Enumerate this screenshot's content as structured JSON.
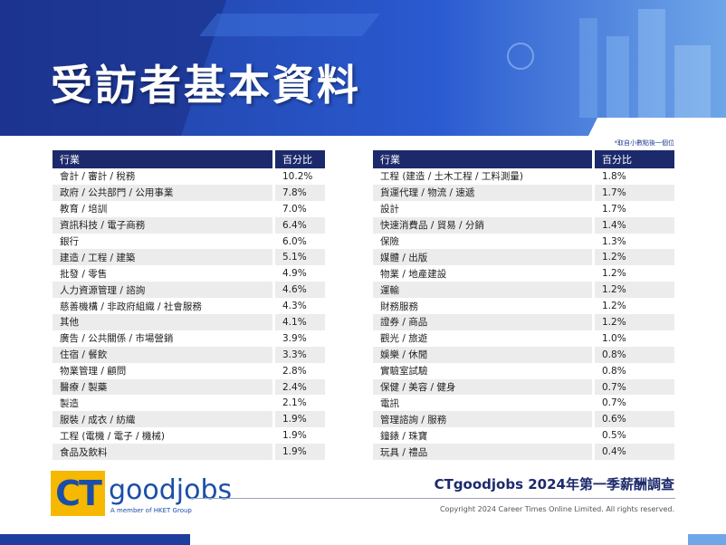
{
  "header": {
    "title": "受訪者基本資料",
    "note": "*取自小數點後一個位"
  },
  "tables": [
    {
      "columns": [
        "行業",
        "百分比"
      ],
      "rows": [
        [
          "會計 / 審計 / 稅務",
          "10.2%"
        ],
        [
          "政府 / 公共部門 / 公用事業",
          "7.8%"
        ],
        [
          "教育 / 培訓",
          "7.0%"
        ],
        [
          "資訊科技 / 電子商務",
          "6.4%"
        ],
        [
          "銀行",
          "6.0%"
        ],
        [
          "建造 / 工程 / 建築",
          "5.1%"
        ],
        [
          "批發 / 零售",
          "4.9%"
        ],
        [
          "人力資源管理 / 諮詢",
          "4.6%"
        ],
        [
          "慈善機構 / 非政府組織 / 社會服務",
          "4.3%"
        ],
        [
          "其他",
          "4.1%"
        ],
        [
          "廣告 / 公共關係 / 市場營銷",
          "3.9%"
        ],
        [
          "住宿 / 餐飲",
          "3.3%"
        ],
        [
          "物業管理 / 顧問",
          "2.8%"
        ],
        [
          "醫療 / 製藥",
          "2.4%"
        ],
        [
          "製造",
          "2.1%"
        ],
        [
          "服裝 / 成衣 / 紡織",
          "1.9%"
        ],
        [
          "工程 (電機 / 電子 / 機械)",
          "1.9%"
        ],
        [
          "食品及飲料",
          "1.9%"
        ]
      ]
    },
    {
      "columns": [
        "行業",
        "百分比"
      ],
      "rows": [
        [
          "工程 (建造 / 土木工程 / 工料測量)",
          "1.8%"
        ],
        [
          "貨運代理 / 物流 / 速遞",
          "1.7%"
        ],
        [
          "設計",
          "1.7%"
        ],
        [
          "快速消費品 / 貿易 / 分銷",
          "1.4%"
        ],
        [
          "保險",
          "1.3%"
        ],
        [
          "媒體 / 出版",
          "1.2%"
        ],
        [
          "物業 / 地產建設",
          "1.2%"
        ],
        [
          "運輸",
          "1.2%"
        ],
        [
          "財務服務",
          "1.2%"
        ],
        [
          "證券 / 商品",
          "1.2%"
        ],
        [
          "觀光 / 旅遊",
          "1.0%"
        ],
        [
          "娛樂 / 休閒",
          "0.8%"
        ],
        [
          "實驗室試驗",
          "0.8%"
        ],
        [
          "保健 / 美容 / 健身",
          "0.7%"
        ],
        [
          "電訊",
          "0.7%"
        ],
        [
          "管理諮詢 / 服務",
          "0.6%"
        ],
        [
          "鐘錶 / 珠寶",
          "0.5%"
        ],
        [
          "玩具 / 禮品",
          "0.4%"
        ]
      ]
    }
  ],
  "footer": {
    "logo_mark": "CT",
    "logo_word": "goodjobs",
    "logo_tagline": "A member of HKET Group",
    "survey_title": "CTgoodjobs 2024年第一季薪酬調查",
    "copyright": "Copyright 2024 Career Times Online Limited. All rights reserved."
  }
}
